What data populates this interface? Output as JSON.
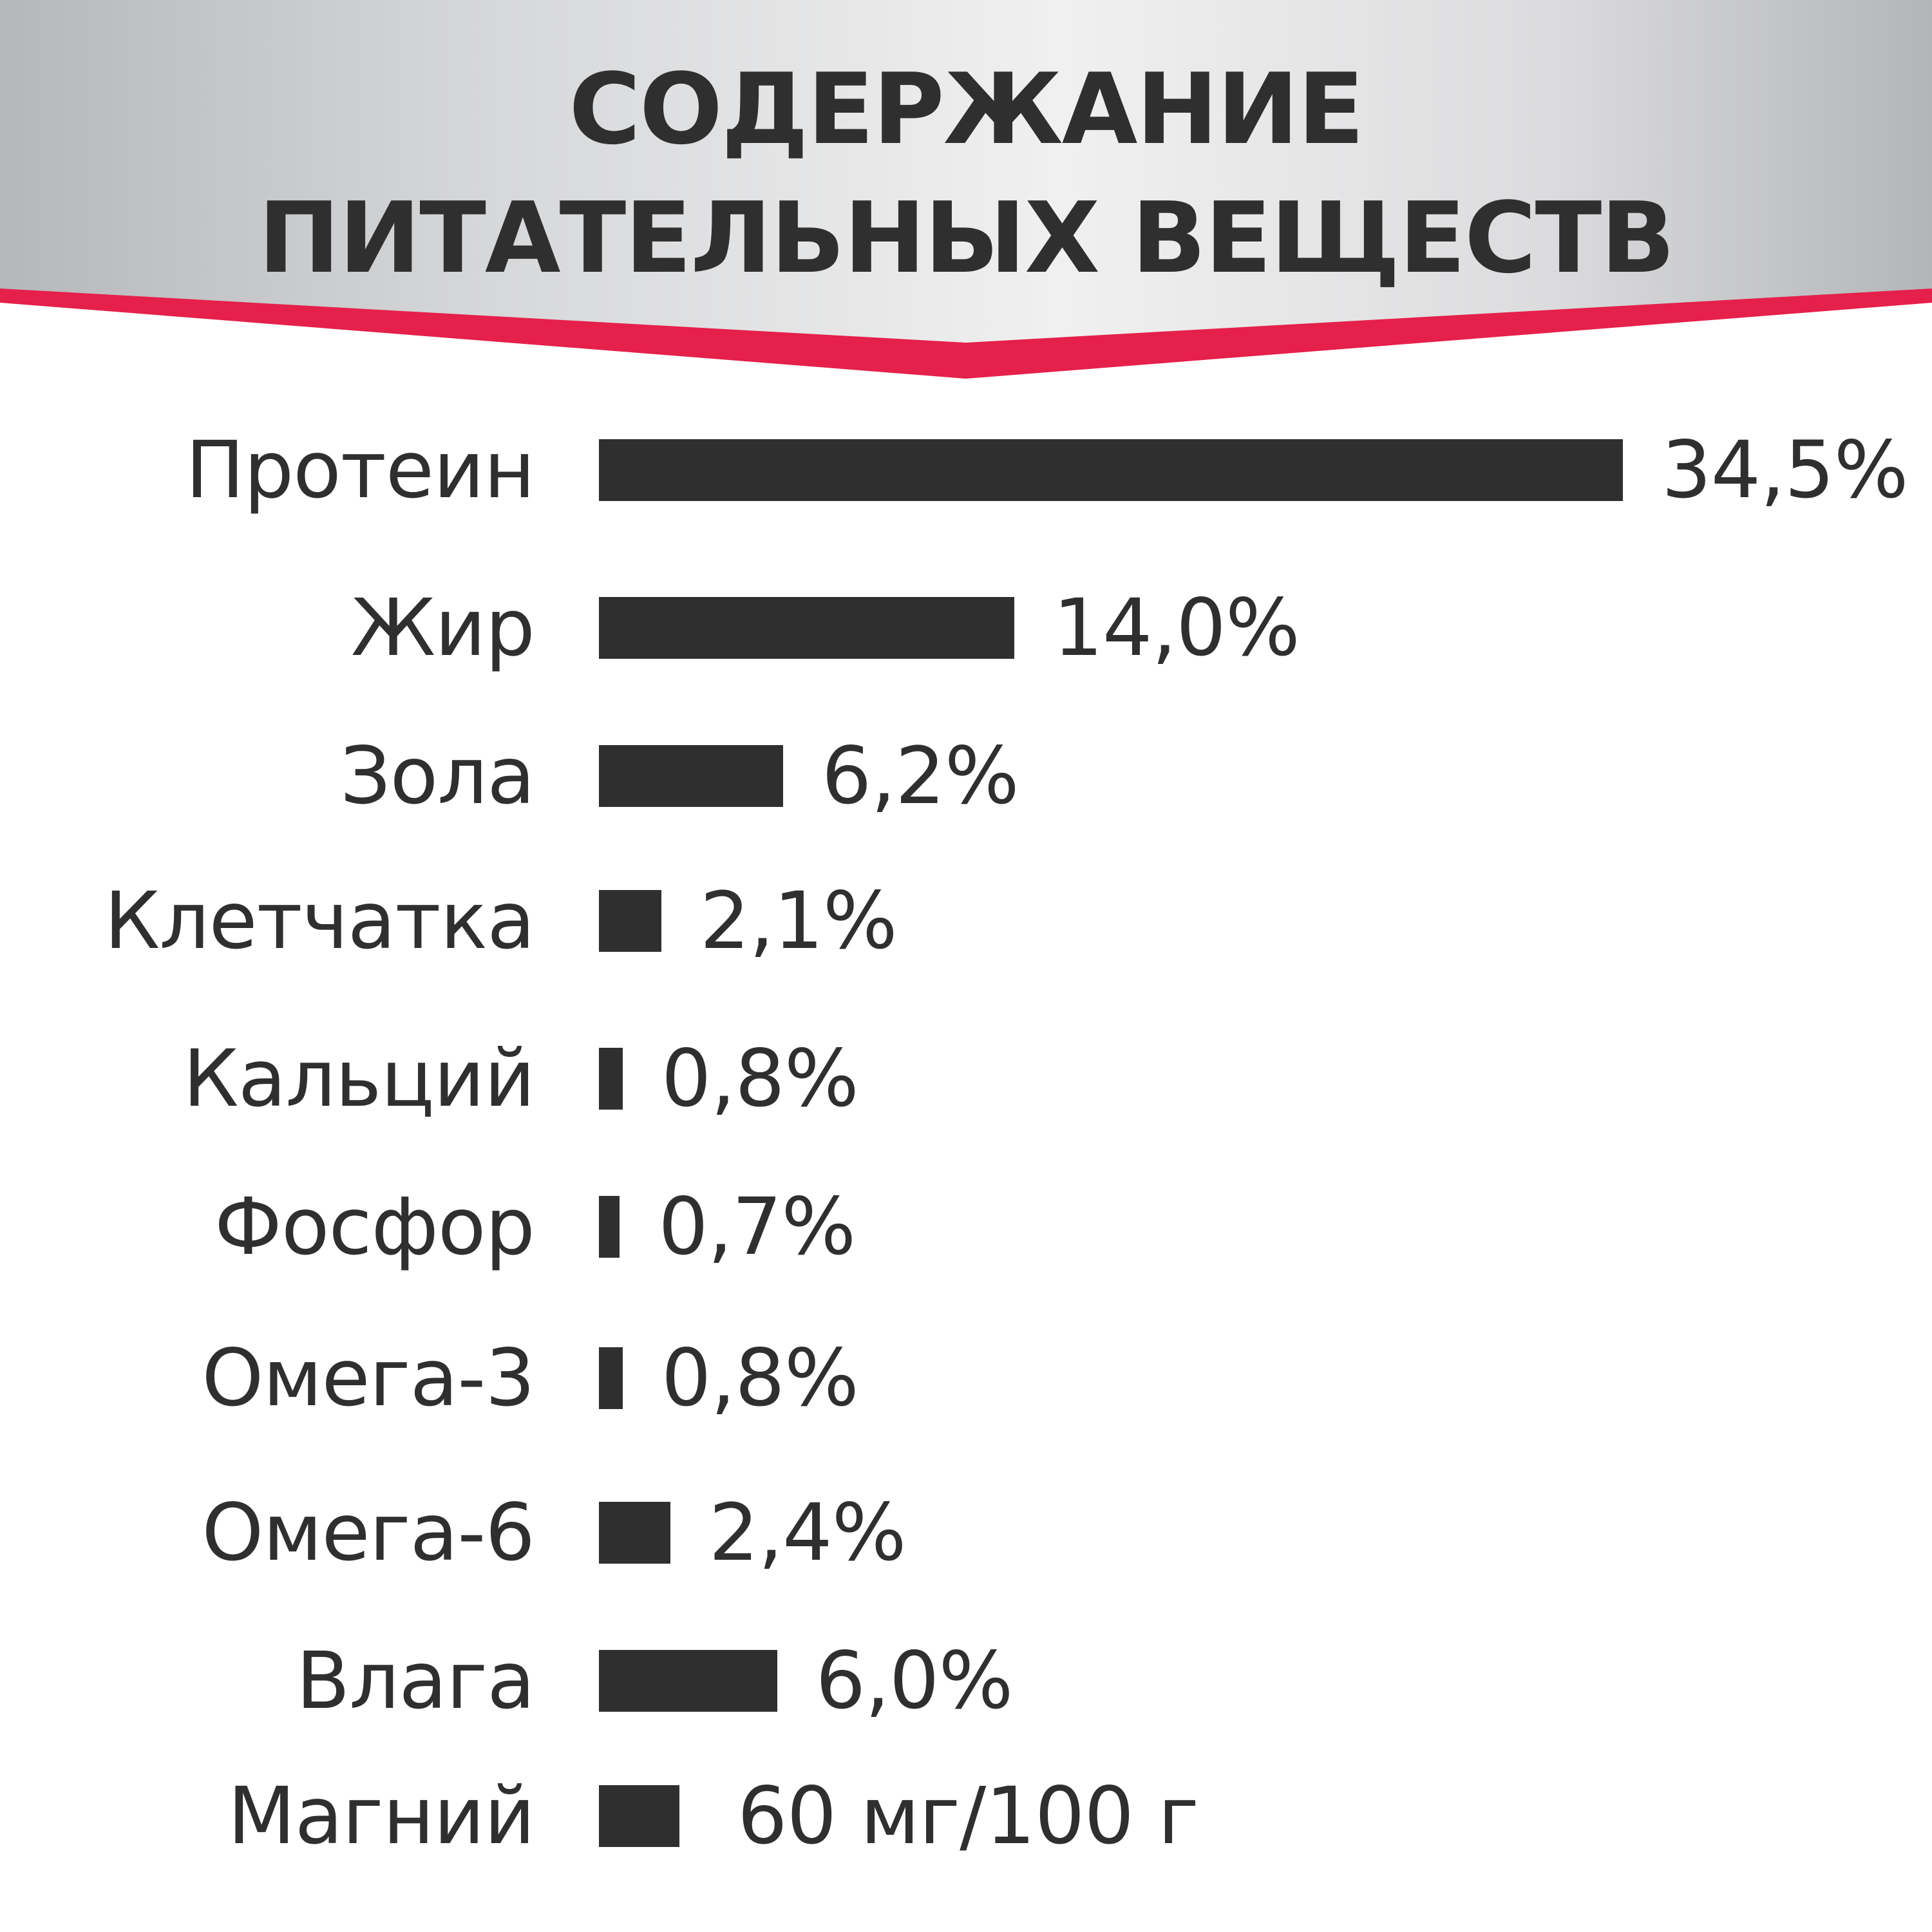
{
  "header": {
    "title_line1": "СОДЕРЖАНИЕ",
    "title_line2": "ПИТАТЕЛЬНЫХ ВЕЩЕСТВ",
    "banner_accent_color": "#e5204a",
    "banner_colors": [
      "#b9bbbe",
      "#eeeeee",
      "#b9bbbe"
    ]
  },
  "chart_data": {
    "type": "bar",
    "orientation": "horizontal",
    "categories": [
      "Протеин",
      "Жир",
      "Зола",
      "Клетчатка",
      "Кальций",
      "Фосфор",
      "Омега-3",
      "Омега-6",
      "Влага",
      "Магний"
    ],
    "values": [
      34.5,
      14.0,
      6.2,
      2.1,
      0.8,
      0.7,
      0.8,
      2.4,
      6.0,
      60
    ],
    "value_labels": [
      "34,5%",
      "14,0%",
      "6,2%",
      "2,1%",
      "0,8%",
      "0,7%",
      "0,8%",
      "2,4%",
      "6,0%",
      "60 мг/100 г"
    ],
    "units": [
      "%",
      "%",
      "%",
      "%",
      "%",
      "%",
      "%",
      "%",
      "%",
      "мг/100 г"
    ],
    "title": "СОДЕРЖАНИЕ ПИТАТЕЛЬНЫХ ВЕЩЕСТВ",
    "xlabel": "",
    "ylabel": "",
    "grid": false,
    "legend": "none",
    "bar_color": "#2f2f2f"
  }
}
